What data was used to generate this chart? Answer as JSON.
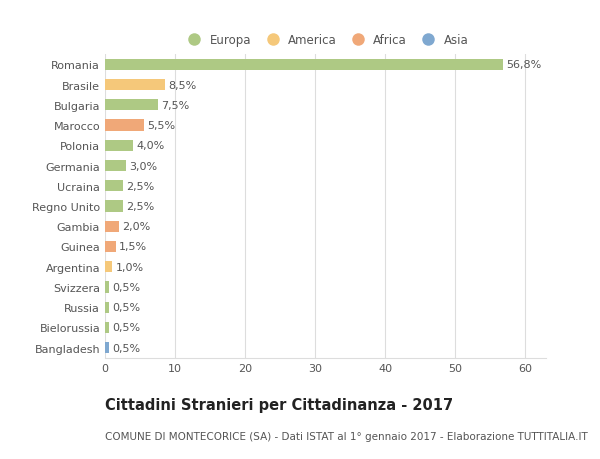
{
  "categories": [
    "Romania",
    "Brasile",
    "Bulgaria",
    "Marocco",
    "Polonia",
    "Germania",
    "Ucraina",
    "Regno Unito",
    "Gambia",
    "Guinea",
    "Argentina",
    "Svizzera",
    "Russia",
    "Bielorussia",
    "Bangladesh"
  ],
  "values": [
    56.8,
    8.5,
    7.5,
    5.5,
    4.0,
    3.0,
    2.5,
    2.5,
    2.0,
    1.5,
    1.0,
    0.5,
    0.5,
    0.5,
    0.5
  ],
  "labels": [
    "56,8%",
    "8,5%",
    "7,5%",
    "5,5%",
    "4,0%",
    "3,0%",
    "2,5%",
    "2,5%",
    "2,0%",
    "1,5%",
    "1,0%",
    "0,5%",
    "0,5%",
    "0,5%",
    "0,5%"
  ],
  "colors": [
    "#aec984",
    "#f5c87a",
    "#aec984",
    "#f0a878",
    "#aec984",
    "#aec984",
    "#aec984",
    "#aec984",
    "#f0a878",
    "#f0a878",
    "#f5c87a",
    "#aec984",
    "#aec984",
    "#aec984",
    "#7fa8d0"
  ],
  "continent": [
    "Europa",
    "America",
    "Europa",
    "Africa",
    "Europa",
    "Europa",
    "Europa",
    "Europa",
    "Africa",
    "Africa",
    "America",
    "Europa",
    "Europa",
    "Europa",
    "Asia"
  ],
  "legend_labels": [
    "Europa",
    "America",
    "Africa",
    "Asia"
  ],
  "legend_colors": [
    "#aec984",
    "#f5c87a",
    "#f0a878",
    "#7fa8d0"
  ],
  "title": "Cittadini Stranieri per Cittadinanza - 2017",
  "subtitle": "COMUNE DI MONTECORICE (SA) - Dati ISTAT al 1° gennaio 2017 - Elaborazione TUTTITALIA.IT",
  "xlim": [
    0,
    63
  ],
  "xticks": [
    0,
    10,
    20,
    30,
    40,
    50,
    60
  ],
  "background_color": "#ffffff",
  "bar_height": 0.55,
  "grid_color": "#dddddd",
  "title_fontsize": 10.5,
  "subtitle_fontsize": 7.5,
  "tick_fontsize": 8,
  "label_fontsize": 8,
  "legend_fontsize": 8.5
}
